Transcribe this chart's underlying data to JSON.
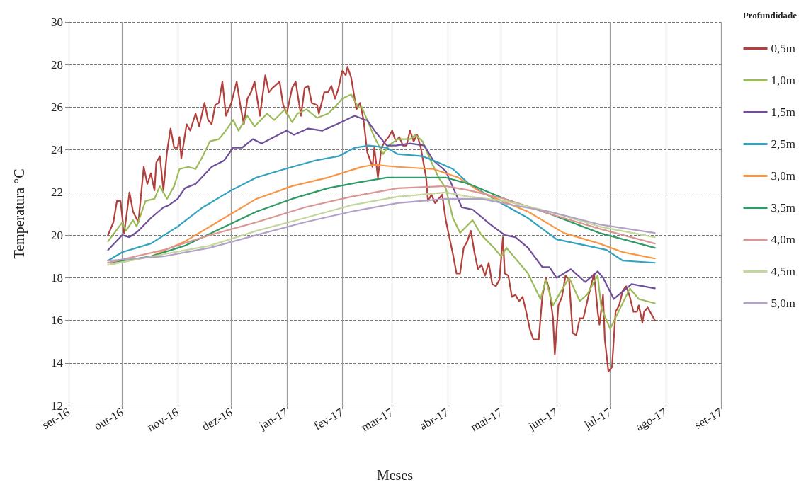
{
  "chart_data": {
    "type": "line",
    "xlabel": "Meses",
    "ylabel": "Temperatura °C",
    "legend_title": "Profundidade",
    "legend": "right",
    "grid": true,
    "marker": "none",
    "line_style": "solid",
    "xlim": [
      "2016-09-01",
      "2017-09-01"
    ],
    "xticks": [
      {
        "value": "2016-09-01",
        "label": "set-16"
      },
      {
        "value": "2016-10-01",
        "label": "out-16"
      },
      {
        "value": "2016-11-01",
        "label": "nov-16"
      },
      {
        "value": "2016-12-01",
        "label": "dez-16"
      },
      {
        "value": "2017-01-01",
        "label": "jan-17"
      },
      {
        "value": "2017-02-01",
        "label": "fev-17"
      },
      {
        "value": "2017-03-01",
        "label": "mar-17"
      },
      {
        "value": "2017-04-01",
        "label": "abr-17"
      },
      {
        "value": "2017-05-01",
        "label": "mai-17"
      },
      {
        "value": "2017-06-01",
        "label": "jun-17"
      },
      {
        "value": "2017-07-01",
        "label": "jul-17"
      },
      {
        "value": "2017-08-01",
        "label": "ago-17"
      },
      {
        "value": "2017-09-01",
        "label": "set-17"
      }
    ],
    "ylim": [
      12,
      30
    ],
    "yticks": [
      12,
      14,
      16,
      18,
      20,
      22,
      24,
      26,
      28,
      30
    ],
    "series": [
      {
        "name": "0,5m",
        "color": "#b2403c",
        "x": [
          "2016-09-23",
          "2016-09-26",
          "2016-09-28",
          "2016-09-30",
          "2016-10-02",
          "2016-10-03",
          "2016-10-05",
          "2016-10-07",
          "2016-10-10",
          "2016-10-13",
          "2016-10-15",
          "2016-10-17",
          "2016-10-19",
          "2016-10-20",
          "2016-10-22",
          "2016-10-24",
          "2016-10-26",
          "2016-10-28",
          "2016-10-30",
          "2016-11-01",
          "2016-11-02",
          "2016-11-03",
          "2016-11-06",
          "2016-11-08",
          "2016-11-11",
          "2016-11-13",
          "2016-11-16",
          "2016-11-18",
          "2016-11-20",
          "2016-11-22",
          "2016-11-24",
          "2016-11-26",
          "2016-11-28",
          "2016-12-01",
          "2016-12-04",
          "2016-12-06",
          "2016-12-08",
          "2016-12-10",
          "2016-12-12",
          "2016-12-14",
          "2016-12-17",
          "2016-12-20",
          "2016-12-22",
          "2016-12-24",
          "2016-12-28",
          "2016-12-30",
          "2017-01-01",
          "2017-01-04",
          "2017-01-06",
          "2017-01-09",
          "2017-01-11",
          "2017-01-13",
          "2017-01-15",
          "2017-01-18",
          "2017-01-19",
          "2017-01-22",
          "2017-01-24",
          "2017-01-26",
          "2017-01-28",
          "2017-01-30",
          "2017-02-01",
          "2017-02-03",
          "2017-02-04",
          "2017-02-06",
          "2017-02-08",
          "2017-02-09",
          "2017-02-11",
          "2017-02-13",
          "2017-02-15",
          "2017-02-18",
          "2017-02-19",
          "2017-02-21",
          "2017-02-23",
          "2017-02-25",
          "2017-02-27",
          "2017-03-01",
          "2017-03-03",
          "2017-03-05",
          "2017-03-07",
          "2017-03-09",
          "2017-03-11",
          "2017-03-13",
          "2017-03-15",
          "2017-03-17",
          "2017-03-20",
          "2017-03-21",
          "2017-03-23",
          "2017-03-25",
          "2017-03-27",
          "2017-03-29",
          "2017-03-31",
          "2017-04-02",
          "2017-04-04",
          "2017-04-06",
          "2017-04-08",
          "2017-04-10",
          "2017-04-12",
          "2017-04-14",
          "2017-04-16",
          "2017-04-18",
          "2017-04-20",
          "2017-04-22",
          "2017-04-24",
          "2017-04-26",
          "2017-04-28",
          "2017-04-30",
          "2017-05-02",
          "2017-05-03",
          "2017-05-05",
          "2017-05-07",
          "2017-05-09",
          "2017-05-11",
          "2017-05-13",
          "2017-05-15",
          "2017-05-17",
          "2017-05-19",
          "2017-05-22",
          "2017-05-24",
          "2017-05-26",
          "2017-05-28",
          "2017-05-30",
          "2017-05-31",
          "2017-06-02",
          "2017-06-04",
          "2017-06-06",
          "2017-06-08",
          "2017-06-10",
          "2017-06-12",
          "2017-06-14",
          "2017-06-16",
          "2017-06-19",
          "2017-06-22",
          "2017-06-24",
          "2017-06-25",
          "2017-06-27",
          "2017-06-28",
          "2017-06-30",
          "2017-07-02",
          "2017-07-04",
          "2017-07-06",
          "2017-07-08",
          "2017-07-10",
          "2017-07-12",
          "2017-07-14",
          "2017-07-16",
          "2017-07-17",
          "2017-07-19",
          "2017-07-20",
          "2017-07-22",
          "2017-07-24",
          "2017-07-26"
        ],
        "values": [
          20.0,
          20.6,
          21.6,
          21.6,
          20.1,
          20.7,
          22.0,
          21.1,
          20.6,
          23.2,
          22.4,
          22.9,
          22.1,
          23.4,
          23.7,
          22.1,
          23.9,
          25.0,
          24.1,
          24.1,
          24.6,
          23.6,
          25.2,
          24.9,
          25.7,
          25.1,
          26.2,
          25.4,
          25.2,
          26.1,
          26.2,
          27.2,
          25.6,
          26.2,
          27.2,
          26.1,
          25.2,
          26.4,
          26.7,
          27.2,
          25.6,
          27.5,
          26.7,
          26.9,
          27.2,
          26.1,
          25.7,
          26.9,
          27.2,
          25.6,
          26.9,
          27.0,
          26.2,
          26.1,
          25.7,
          26.7,
          26.7,
          27.0,
          26.4,
          26.9,
          27.7,
          27.5,
          27.9,
          27.4,
          26.4,
          25.9,
          26.2,
          25.4,
          23.9,
          23.2,
          24.1,
          22.7,
          24.1,
          24.4,
          24.6,
          24.9,
          24.4,
          24.6,
          24.2,
          24.2,
          24.9,
          24.4,
          24.7,
          24.1,
          22.7,
          21.6,
          21.9,
          21.5,
          21.7,
          21.9,
          20.7,
          19.9,
          19.1,
          18.2,
          18.2,
          19.4,
          19.7,
          20.2,
          19.2,
          18.4,
          18.6,
          18.1,
          18.7,
          17.7,
          17.6,
          17.9,
          19.9,
          18.2,
          18.1,
          17.1,
          17.2,
          16.9,
          17.1,
          16.4,
          15.6,
          15.1,
          15.1,
          17.1,
          18.0,
          17.4,
          16.1,
          14.4,
          16.7,
          17.1,
          18.1,
          17.9,
          15.4,
          15.3,
          16.1,
          16.1,
          17.2,
          18.2,
          16.4,
          15.8,
          17.2,
          15.1,
          13.6,
          13.8,
          16.4,
          16.7,
          17.4,
          17.6,
          17.1,
          16.4,
          16.4,
          16.7,
          15.9,
          16.4,
          16.6,
          16.3,
          16.0
        ]
      },
      {
        "name": "1,0m",
        "color": "#9bbb59",
        "x": [
          "2016-09-23",
          "2016-10-01",
          "2016-10-03",
          "2016-10-07",
          "2016-10-09",
          "2016-10-14",
          "2016-10-19",
          "2016-10-22",
          "2016-10-26",
          "2016-10-30",
          "2016-11-02",
          "2016-11-07",
          "2016-11-11",
          "2016-11-15",
          "2016-11-19",
          "2016-11-24",
          "2016-11-27",
          "2016-12-02",
          "2016-12-05",
          "2016-12-10",
          "2016-12-14",
          "2016-12-21",
          "2016-12-25",
          "2016-12-31",
          "2017-01-04",
          "2017-01-07",
          "2017-01-12",
          "2017-01-18",
          "2017-01-24",
          "2017-01-28",
          "2017-02-01",
          "2017-02-06",
          "2017-02-10",
          "2017-02-12",
          "2017-02-19",
          "2017-02-24",
          "2017-02-27",
          "2017-03-04",
          "2017-03-11",
          "2017-03-14",
          "2017-03-18",
          "2017-03-22",
          "2017-03-27",
          "2017-03-31",
          "2017-04-04",
          "2017-04-08",
          "2017-04-15",
          "2017-04-20",
          "2017-04-27",
          "2017-05-01",
          "2017-05-04",
          "2017-05-12",
          "2017-05-16",
          "2017-05-23",
          "2017-05-26",
          "2017-05-30",
          "2017-06-03",
          "2017-06-08",
          "2017-06-14",
          "2017-06-18",
          "2017-06-24",
          "2017-06-26",
          "2017-07-01",
          "2017-07-12",
          "2017-07-17",
          "2017-07-26"
        ],
        "values": [
          19.7,
          20.6,
          20.2,
          20.7,
          20.4,
          21.6,
          21.7,
          22.3,
          21.7,
          22.3,
          23.1,
          23.2,
          23.1,
          23.7,
          24.4,
          24.5,
          24.8,
          25.4,
          24.9,
          25.6,
          25.1,
          25.7,
          25.4,
          25.9,
          25.3,
          25.7,
          25.9,
          25.5,
          25.7,
          26.0,
          26.4,
          26.6,
          26.0,
          26.0,
          24.6,
          23.8,
          24.2,
          24.5,
          24.5,
          24.7,
          24.4,
          23.6,
          22.7,
          22.2,
          20.8,
          20.1,
          20.7,
          20.0,
          19.4,
          19.0,
          19.4,
          18.6,
          18.2,
          17.0,
          17.9,
          16.7,
          17.3,
          18.0,
          16.9,
          17.2,
          18.1,
          16.6,
          15.6,
          17.5,
          17.0,
          16.8
        ]
      },
      {
        "name": "1,5m",
        "color": "#6f4f9b",
        "x": [
          "2016-09-23",
          "2016-10-01",
          "2016-10-05",
          "2016-10-10",
          "2016-10-17",
          "2016-10-24",
          "2016-10-27",
          "2016-11-01",
          "2016-11-05",
          "2016-11-11",
          "2016-11-20",
          "2016-11-27",
          "2016-12-02",
          "2016-12-07",
          "2016-12-13",
          "2016-12-18",
          "2016-12-25",
          "2017-01-01",
          "2017-01-05",
          "2017-01-13",
          "2017-01-21",
          "2017-01-29",
          "2017-02-08",
          "2017-02-14",
          "2017-02-15",
          "2017-02-20",
          "2017-02-26",
          "2017-03-03",
          "2017-03-11",
          "2017-03-19",
          "2017-03-24",
          "2017-03-31",
          "2017-04-09",
          "2017-04-15",
          "2017-04-25",
          "2017-05-03",
          "2017-05-09",
          "2017-05-16",
          "2017-05-24",
          "2017-05-28",
          "2017-06-01",
          "2017-06-09",
          "2017-06-17",
          "2017-06-24",
          "2017-06-27",
          "2017-07-03",
          "2017-07-13",
          "2017-07-26"
        ],
        "values": [
          19.3,
          20.0,
          19.9,
          20.2,
          20.8,
          21.3,
          21.4,
          21.7,
          22.2,
          22.4,
          23.2,
          23.5,
          24.1,
          24.1,
          24.5,
          24.3,
          24.6,
          24.9,
          24.7,
          25.0,
          24.9,
          25.2,
          25.6,
          25.4,
          25.4,
          24.8,
          24.2,
          24.2,
          24.3,
          24.2,
          23.5,
          23.0,
          21.3,
          21.2,
          20.5,
          20.0,
          19.9,
          19.4,
          18.5,
          18.5,
          18.0,
          18.4,
          17.8,
          18.3,
          18.0,
          17.0,
          17.7,
          17.5
        ]
      },
      {
        "name": "2,5m",
        "color": "#31a2c0",
        "x": [
          "2016-09-23",
          "2016-10-01",
          "2016-10-17",
          "2016-11-01",
          "2016-11-15",
          "2016-12-01",
          "2016-12-15",
          "2016-12-31",
          "2017-01-17",
          "2017-01-30",
          "2017-02-08",
          "2017-02-16",
          "2017-02-26",
          "2017-03-04",
          "2017-03-18",
          "2017-03-27",
          "2017-04-04",
          "2017-04-13",
          "2017-05-01",
          "2017-05-16",
          "2017-06-01",
          "2017-06-18",
          "2017-06-29",
          "2017-07-08",
          "2017-07-26"
        ],
        "values": [
          18.8,
          19.2,
          19.6,
          20.4,
          21.3,
          22.1,
          22.7,
          23.1,
          23.5,
          23.7,
          24.1,
          24.2,
          24.1,
          23.8,
          23.7,
          23.4,
          23.1,
          22.4,
          21.5,
          20.8,
          19.8,
          19.5,
          19.3,
          18.8,
          18.7
        ]
      },
      {
        "name": "3,0m",
        "color": "#f79646",
        "x": [
          "2016-09-23",
          "2016-10-17",
          "2016-11-05",
          "2016-11-25",
          "2016-12-15",
          "2017-01-04",
          "2017-01-24",
          "2017-02-12",
          "2017-02-19",
          "2017-03-04",
          "2017-03-24",
          "2017-04-07",
          "2017-04-20",
          "2017-05-16",
          "2017-06-05",
          "2017-06-25",
          "2017-07-08",
          "2017-07-26"
        ],
        "values": [
          18.6,
          19.0,
          19.7,
          20.7,
          21.7,
          22.3,
          22.7,
          23.2,
          23.3,
          23.2,
          23.1,
          22.7,
          22.0,
          21.1,
          20.1,
          19.6,
          19.2,
          18.9
        ]
      },
      {
        "name": "3,5m",
        "color": "#2e9b66",
        "x": [
          "2016-09-23",
          "2016-10-17",
          "2016-11-05",
          "2016-11-25",
          "2016-12-15",
          "2017-01-04",
          "2017-01-24",
          "2017-02-12",
          "2017-02-26",
          "2017-03-18",
          "2017-03-31",
          "2017-04-13",
          "2017-05-03",
          "2017-05-28",
          "2017-06-25",
          "2017-07-26"
        ],
        "values": [
          18.7,
          19.0,
          19.5,
          20.3,
          21.1,
          21.7,
          22.2,
          22.5,
          22.7,
          22.7,
          22.7,
          22.4,
          21.7,
          21.0,
          20.1,
          19.4
        ]
      },
      {
        "name": "4,0m",
        "color": "#d99694",
        "x": [
          "2016-09-23",
          "2016-10-24",
          "2016-11-19",
          "2016-12-15",
          "2017-01-11",
          "2017-02-06",
          "2017-03-04",
          "2017-03-31",
          "2017-04-13",
          "2017-05-03",
          "2017-05-28",
          "2017-06-25",
          "2017-07-26"
        ],
        "values": [
          18.7,
          19.3,
          20.0,
          20.6,
          21.3,
          21.8,
          22.2,
          22.3,
          22.1,
          21.7,
          21.0,
          20.3,
          19.6
        ]
      },
      {
        "name": "4,5m",
        "color": "#c3d69b",
        "x": [
          "2016-09-23",
          "2016-10-24",
          "2016-11-19",
          "2016-12-15",
          "2017-01-11",
          "2017-02-06",
          "2017-03-04",
          "2017-03-31",
          "2017-04-13",
          "2017-05-03",
          "2017-05-28",
          "2017-06-25",
          "2017-07-26"
        ],
        "values": [
          18.6,
          19.1,
          19.5,
          20.2,
          20.8,
          21.4,
          21.8,
          22.0,
          21.8,
          21.6,
          21.1,
          20.4,
          19.9
        ]
      },
      {
        "name": "5,0m",
        "color": "#b3a2c7",
        "x": [
          "2016-09-23",
          "2016-10-24",
          "2016-11-19",
          "2016-12-15",
          "2017-01-11",
          "2017-02-06",
          "2017-03-04",
          "2017-03-31",
          "2017-04-20",
          "2017-05-08",
          "2017-05-28",
          "2017-06-25",
          "2017-07-26"
        ],
        "values": [
          18.8,
          19.0,
          19.4,
          20.0,
          20.6,
          21.1,
          21.5,
          21.7,
          21.7,
          21.4,
          21.1,
          20.5,
          20.1
        ]
      }
    ]
  }
}
